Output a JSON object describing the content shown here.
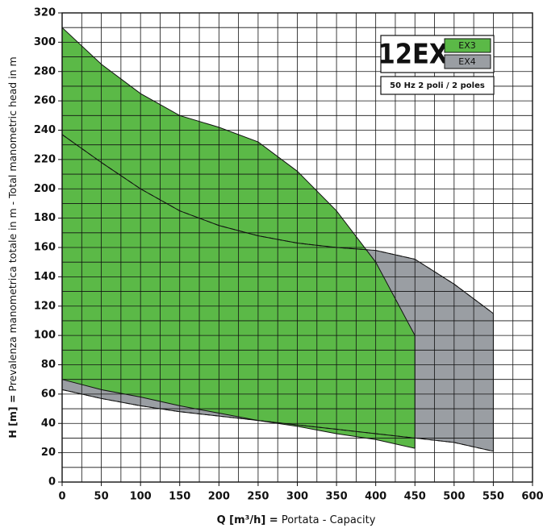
{
  "chart_data": {
    "type": "band",
    "title": "12EX",
    "subtitle": "50 Hz 2 poli / 2 poles",
    "xlabel": [
      "Q [m³/h] =",
      "Portata  -  Capacity"
    ],
    "ylabel": [
      "H [m] =",
      "Prevalenza manometrica totale in m  -  Total manometric head in m"
    ],
    "x": [
      0,
      50,
      100,
      150,
      200,
      250,
      300,
      350,
      400,
      450,
      500,
      550
    ],
    "series": [
      {
        "name": "EX4",
        "color": "#9a9ea3",
        "values": [
          237,
          218,
          200,
          185,
          175,
          168,
          163,
          160,
          158,
          152,
          135,
          115
        ],
        "lower": [
          63,
          57,
          52,
          48,
          45,
          42,
          39,
          36,
          33,
          30,
          27,
          21
        ]
      },
      {
        "name": "EX3",
        "color": "#5bb947",
        "values": [
          310,
          285,
          265,
          250,
          242,
          232,
          212,
          185,
          150,
          100,
          null,
          null
        ],
        "lower": [
          70,
          63,
          58,
          52,
          47,
          42,
          38,
          33,
          29,
          23,
          null,
          null
        ]
      }
    ],
    "xlim": [
      0,
      600
    ],
    "xticks": [
      0,
      50,
      100,
      150,
      200,
      250,
      300,
      350,
      400,
      450,
      500,
      550,
      600
    ],
    "ylim": [
      0,
      320
    ],
    "yticks": [
      0,
      20,
      40,
      60,
      80,
      100,
      120,
      140,
      160,
      180,
      200,
      220,
      240,
      260,
      280,
      300,
      320
    ],
    "grid": true,
    "minor_grid": true
  }
}
